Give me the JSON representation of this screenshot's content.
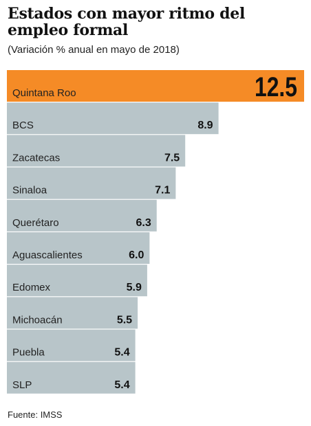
{
  "title": "Estados con mayor ritmo del empleo formal",
  "subtitle": "(Variación % anual en mayo de  2018)",
  "source": "Fuente: IMSS",
  "colors": {
    "highlight": "#f58b26",
    "bar": "#b8c5c9",
    "label": "#222222",
    "value": "#111111"
  },
  "chart_data": {
    "type": "bar",
    "orientation": "horizontal",
    "title": "Estados con mayor ritmo del empleo formal",
    "subtitle": "(Variación % anual en mayo de  2018)",
    "categories": [
      "Quintana Roo",
      "BCS",
      "Zacatecas",
      "Sinaloa",
      "Querétaro",
      "Aguascalientes",
      "Edomex",
      "Michoacán",
      "Puebla",
      "SLP"
    ],
    "values": [
      12.5,
      8.9,
      7.5,
      7.1,
      6.3,
      6.0,
      5.9,
      5.5,
      5.4,
      5.4
    ],
    "value_labels": [
      "12.5",
      "8.9",
      "7.5",
      "7.1",
      "6.3",
      "6.0",
      "5.9",
      "5.5",
      "5.4",
      "5.4"
    ],
    "highlight_index": 0,
    "xlim": [
      0,
      12.5
    ],
    "grid": false,
    "legend": "none"
  }
}
